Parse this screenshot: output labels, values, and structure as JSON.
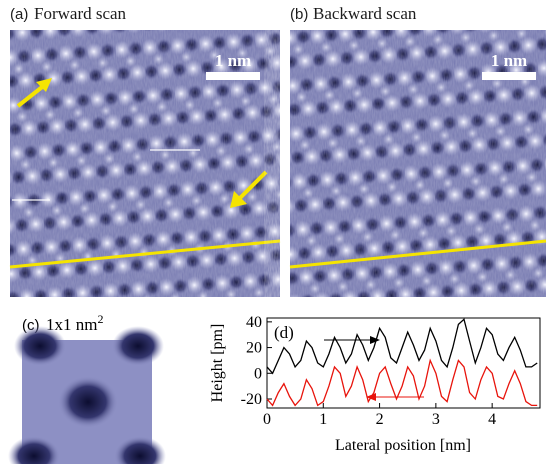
{
  "panels": {
    "a": {
      "label": "(a)",
      "title": "Forward scan",
      "scale_bar": "1 nm"
    },
    "b": {
      "label": "(b)",
      "title": "Backward scan",
      "scale_bar": "1 nm"
    },
    "c": {
      "label": "(c)",
      "title": "1x1 nm",
      "title_sup": "2"
    }
  },
  "chart_data": {
    "type": "line",
    "label": "(d)",
    "x_label": "Lateral position [nm]",
    "y_label": "Height [pm]",
    "x": [
      0,
      0.1,
      0.2,
      0.3,
      0.4,
      0.5,
      0.6,
      0.7,
      0.8,
      0.9,
      1.0,
      1.1,
      1.2,
      1.3,
      1.4,
      1.5,
      1.6,
      1.7,
      1.8,
      1.9,
      2.0,
      2.1,
      2.2,
      2.3,
      2.4,
      2.5,
      2.6,
      2.7,
      2.8,
      2.9,
      3.0,
      3.1,
      3.2,
      3.3,
      3.4,
      3.5,
      3.6,
      3.7,
      3.8,
      3.9,
      4.0,
      4.1,
      4.2,
      4.3,
      4.4,
      4.5,
      4.6,
      4.7,
      4.8
    ],
    "series": [
      {
        "color": "#000000",
        "values": [
          5,
          0,
          10,
          20,
          15,
          5,
          10,
          25,
          20,
          8,
          5,
          15,
          28,
          20,
          8,
          15,
          30,
          22,
          10,
          20,
          35,
          28,
          12,
          8,
          20,
          32,
          22,
          10,
          18,
          35,
          25,
          10,
          5,
          20,
          38,
          42,
          25,
          8,
          20,
          35,
          30,
          15,
          10,
          20,
          28,
          18,
          5,
          5,
          8
        ]
      },
      {
        "color": "#e8140c",
        "values": [
          -20,
          -25,
          -15,
          -8,
          -18,
          -25,
          -20,
          -5,
          -12,
          -25,
          -22,
          -10,
          5,
          0,
          -18,
          -10,
          5,
          -5,
          -22,
          -15,
          0,
          5,
          -8,
          -20,
          -10,
          5,
          -2,
          -20,
          -10,
          10,
          0,
          -18,
          -22,
          -5,
          10,
          5,
          -15,
          -20,
          -5,
          5,
          0,
          -18,
          -20,
          -8,
          2,
          -8,
          -22,
          -25,
          -25
        ]
      }
    ],
    "xlim": [
      0,
      4.85
    ],
    "ylim": [
      -27,
      43
    ],
    "xticks": [
      0,
      1,
      2,
      3,
      4
    ],
    "yticks": [
      -20,
      0,
      20,
      40
    ]
  }
}
